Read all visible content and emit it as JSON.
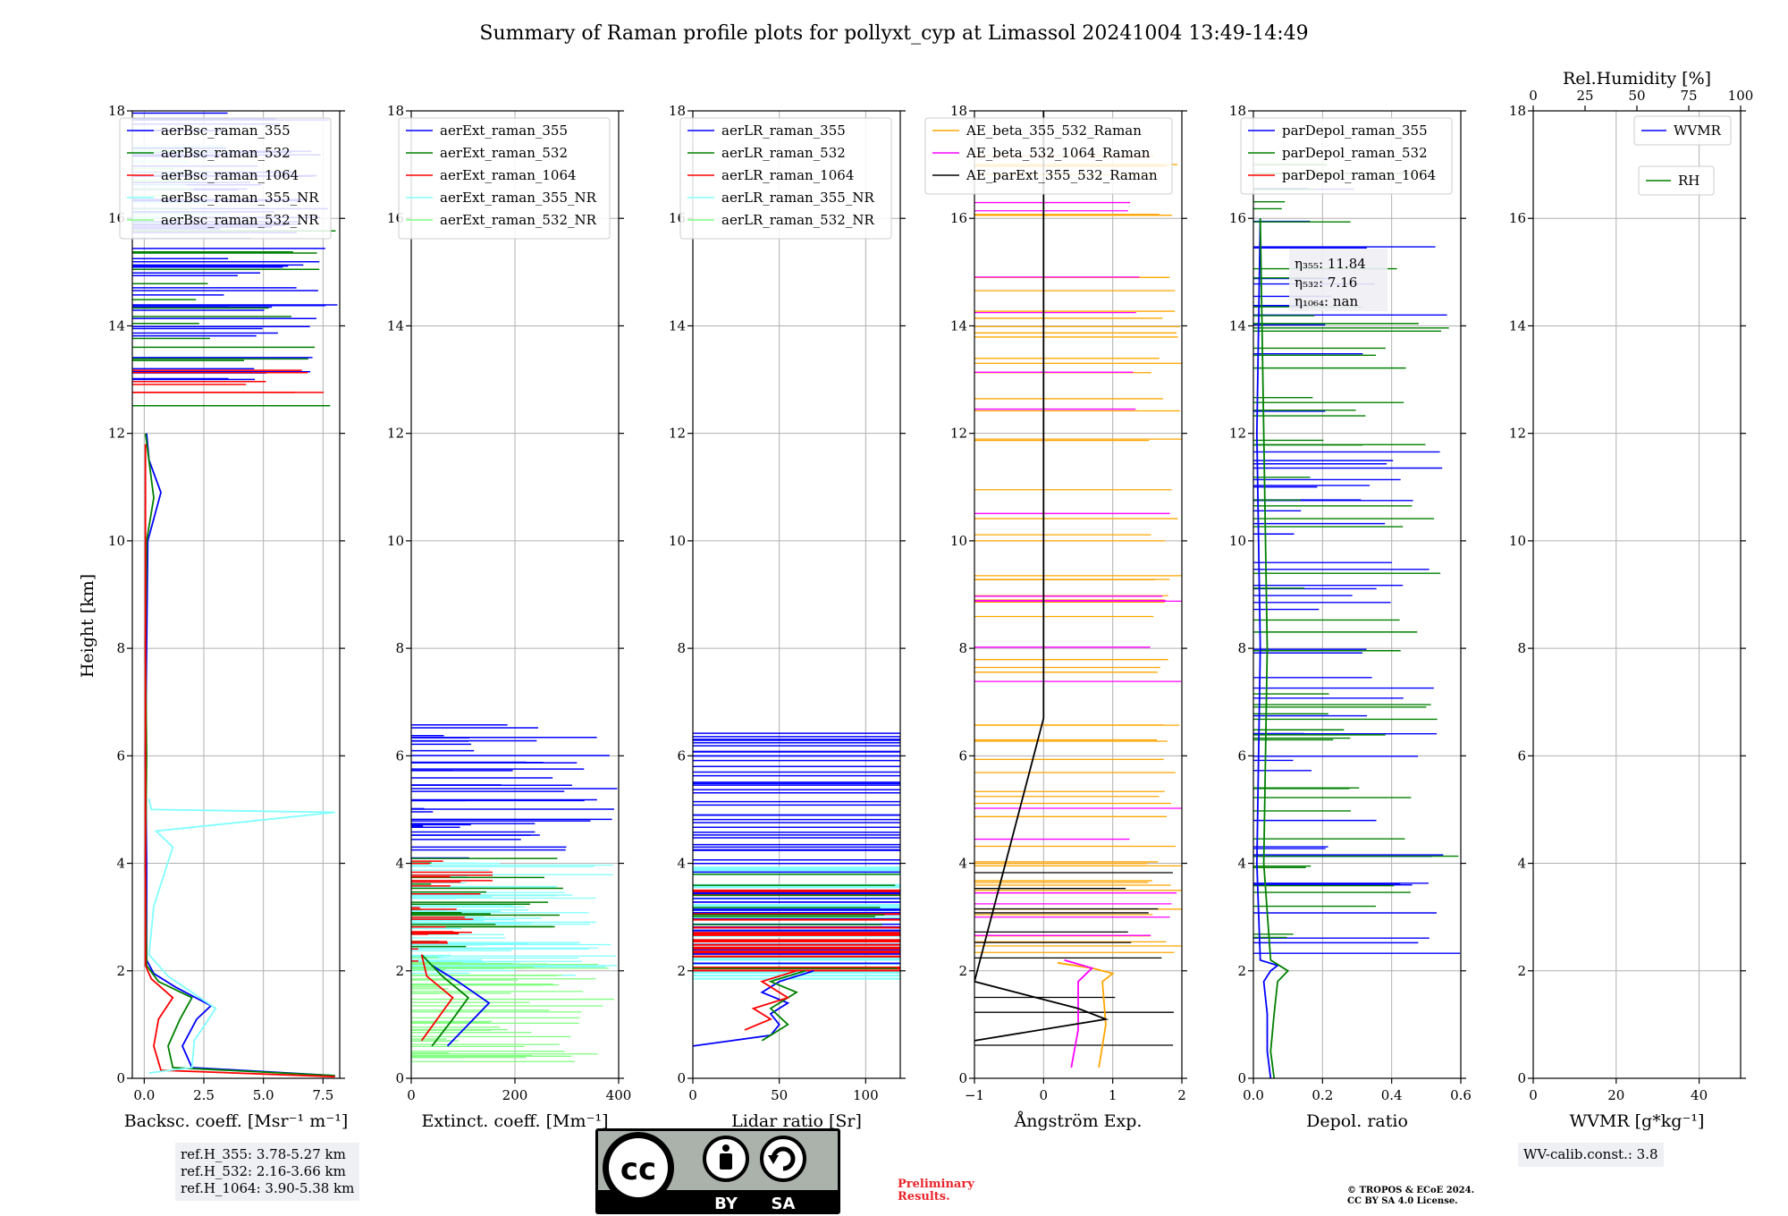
{
  "figure": {
    "title": "Summary of Raman profile plots for pollyxt_cyp at Limassol 20241004 13:49-14:49",
    "ylabel": "Height [km]"
  },
  "colors": {
    "c355": "#0000ff",
    "c532": "#008000",
    "c1064": "#ff0000",
    "c355nr": "#80ffff",
    "c532nr": "#80ff80",
    "orange": "#ffa500",
    "magenta": "#ff00ff",
    "black": "#000000"
  },
  "chart_data": [
    {
      "id": "bsc",
      "type": "line",
      "xlabel": "Backsc. coeff. [Msr⁻¹ m⁻¹]",
      "xlim": [
        -0.5,
        8.2
      ],
      "xticks": [
        0.0,
        2.5,
        5.0,
        7.5
      ],
      "xtick_labels": [
        "0.0",
        "2.5",
        "5.0",
        "7.5"
      ],
      "ylim": [
        0,
        18
      ],
      "yticks": [
        0,
        2,
        4,
        6,
        8,
        10,
        12,
        14,
        16,
        18
      ],
      "legend": [
        "aerBsc_raman_355",
        "aerBsc_raman_532",
        "aerBsc_raman_1064",
        "aerBsc_raman_355_NR",
        "aerBsc_raman_532_NR"
      ],
      "legend_colors": [
        "#0000ff",
        "#008000",
        "#ff0000",
        "#80ffff",
        "#80ff80"
      ],
      "series": [
        {
          "name": "aerBsc_raman_355",
          "color": "#0000ff",
          "points": [
            [
              8.0,
              0.05
            ],
            [
              2.0,
              0.2
            ],
            [
              1.6,
              0.6
            ],
            [
              2.2,
              1.1
            ],
            [
              2.8,
              1.35
            ],
            [
              1.3,
              1.7
            ],
            [
              0.4,
              1.95
            ],
            [
              0.1,
              2.2
            ],
            [
              0.1,
              4
            ],
            [
              0.05,
              6
            ],
            [
              0.1,
              8
            ],
            [
              0.15,
              10
            ],
            [
              0.7,
              10.9
            ],
            [
              0.2,
              11.5
            ],
            [
              0.1,
              12
            ]
          ]
        },
        {
          "name": "aerBsc_raman_532",
          "color": "#008000",
          "points": [
            [
              8.0,
              0.05
            ],
            [
              1.2,
              0.2
            ],
            [
              1.0,
              0.6
            ],
            [
              1.5,
              1.1
            ],
            [
              2.0,
              1.5
            ],
            [
              0.6,
              1.8
            ],
            [
              0.1,
              2.1
            ],
            [
              0.05,
              4
            ],
            [
              0.1,
              6
            ],
            [
              0.05,
              8
            ],
            [
              0.1,
              10
            ],
            [
              0.4,
              10.8
            ],
            [
              0.05,
              12
            ]
          ]
        },
        {
          "name": "aerBsc_raman_1064",
          "color": "#ff0000",
          "points": [
            [
              8.0,
              0.03
            ],
            [
              0.7,
              0.15
            ],
            [
              0.4,
              0.6
            ],
            [
              0.6,
              1.1
            ],
            [
              1.2,
              1.5
            ],
            [
              0.3,
              1.85
            ],
            [
              0.05,
              2.1
            ],
            [
              0.05,
              11.8
            ]
          ]
        },
        {
          "name": "aerBsc_raman_355_NR",
          "color": "#80ffff",
          "points": [
            [
              0.2,
              0.1
            ],
            [
              2.0,
              0.2
            ],
            [
              2.1,
              0.7
            ],
            [
              3.0,
              1.3
            ],
            [
              1.0,
              1.9
            ],
            [
              0.2,
              2.3
            ],
            [
              0.4,
              3.2
            ],
            [
              1.2,
              4.3
            ],
            [
              0.5,
              4.6
            ],
            [
              8.0,
              4.95
            ],
            [
              0.3,
              5.0
            ],
            [
              0.2,
              5.2
            ]
          ]
        }
      ],
      "spikes_note": "many horizontal spikes above 12 km"
    },
    {
      "id": "ext",
      "type": "line",
      "xlabel": "Extinct. coeff. [Mm⁻¹]",
      "xlim": [
        0,
        400
      ],
      "xticks": [
        0,
        200,
        400
      ],
      "xtick_labels": [
        "0",
        "200",
        "400"
      ],
      "ylim": [
        0,
        18
      ],
      "yticks": [
        0,
        2,
        4,
        6,
        8,
        10,
        12,
        14,
        16,
        18
      ],
      "legend": [
        "aerExt_raman_355",
        "aerExt_raman_532",
        "aerExt_raman_1064",
        "aerExt_raman_355_NR",
        "aerExt_raman_532_NR"
      ],
      "legend_colors": [
        "#0000ff",
        "#008000",
        "#ff0000",
        "#80ffff",
        "#80ff80"
      ],
      "series": [
        {
          "name": "aerExt_raman_355",
          "color": "#0000ff",
          "points": [
            [
              70,
              0.6
            ],
            [
              110,
              1.0
            ],
            [
              150,
              1.4
            ],
            [
              90,
              1.8
            ],
            [
              40,
              2.1
            ]
          ]
        },
        {
          "name": "aerExt_raman_532",
          "color": "#008000",
          "points": [
            [
              40,
              0.6
            ],
            [
              80,
              1.1
            ],
            [
              110,
              1.5
            ],
            [
              60,
              1.9
            ],
            [
              20,
              2.3
            ]
          ]
        },
        {
          "name": "aerExt_raman_1064",
          "color": "#ff0000",
          "points": [
            [
              20,
              0.7
            ],
            [
              50,
              1.1
            ],
            [
              80,
              1.5
            ],
            [
              30,
              1.9
            ],
            [
              20,
              2.3
            ]
          ]
        }
      ]
    },
    {
      "id": "lr",
      "type": "line",
      "xlabel": "Lidar ratio [Sr]",
      "xlim": [
        0,
        120
      ],
      "xticks": [
        0,
        50,
        100
      ],
      "xtick_labels": [
        "0",
        "50",
        "100"
      ],
      "ylim": [
        0,
        18
      ],
      "yticks": [
        0,
        2,
        4,
        6,
        8,
        10,
        12,
        14,
        16,
        18
      ],
      "legend": [
        "aerLR_raman_355",
        "aerLR_raman_532",
        "aerLR_raman_1064",
        "aerLR_raman_355_NR",
        "aerLR_raman_532_NR"
      ],
      "legend_colors": [
        "#0000ff",
        "#008000",
        "#ff0000",
        "#80ffff",
        "#80ff80"
      ],
      "series": [
        {
          "name": "aerLR_raman_355",
          "color": "#0000ff",
          "points": [
            [
              0,
              0.6
            ],
            [
              45,
              0.8
            ],
            [
              50,
              1.0
            ],
            [
              45,
              1.2
            ],
            [
              55,
              1.4
            ],
            [
              40,
              1.6
            ],
            [
              50,
              1.8
            ],
            [
              70,
              2.0
            ]
          ]
        },
        {
          "name": "aerLR_raman_532",
          "color": "#008000",
          "points": [
            [
              40,
              0.7
            ],
            [
              55,
              1.0
            ],
            [
              45,
              1.3
            ],
            [
              60,
              1.6
            ],
            [
              45,
              1.8
            ],
            [
              65,
              2.0
            ]
          ]
        },
        {
          "name": "aerLR_raman_1064",
          "color": "#ff0000",
          "points": [
            [
              30,
              0.9
            ],
            [
              45,
              1.1
            ],
            [
              35,
              1.3
            ],
            [
              55,
              1.5
            ],
            [
              40,
              1.8
            ],
            [
              60,
              2.0
            ]
          ]
        }
      ]
    },
    {
      "id": "ae",
      "type": "line",
      "xlabel": "Ångström Exp.",
      "xlim": [
        -1,
        2
      ],
      "xticks": [
        -1,
        0,
        1,
        2
      ],
      "xtick_labels": [
        "−1",
        "0",
        "1",
        "2"
      ],
      "ylim": [
        0,
        18
      ],
      "yticks": [
        0,
        2,
        4,
        6,
        8,
        10,
        12,
        14,
        16,
        18
      ],
      "legend": [
        "AE_beta_355_532_Raman",
        "AE_beta_532_1064_Raman",
        "AE_parExt_355_532_Raman"
      ],
      "legend_colors": [
        "#ffa500",
        "#ff00ff",
        "#000000"
      ],
      "series": [
        {
          "name": "AE_beta_355_532_Raman",
          "color": "#ffa500",
          "points": [
            [
              0.8,
              0.2
            ],
            [
              0.9,
              1.0
            ],
            [
              0.85,
              1.8
            ],
            [
              1.0,
              1.95
            ],
            [
              0.7,
              2.05
            ],
            [
              0.2,
              2.15
            ]
          ]
        },
        {
          "name": "AE_beta_532_1064_Raman",
          "color": "#ff00ff",
          "points": [
            [
              0.4,
              0.2
            ],
            [
              0.5,
              0.9
            ],
            [
              0.5,
              1.8
            ],
            [
              0.7,
              2.05
            ],
            [
              0.3,
              2.2
            ]
          ]
        },
        {
          "name": "AE_parExt_355_532_Raman",
          "color": "#000000",
          "points": [
            [
              -1,
              0.7
            ],
            [
              0.9,
              1.1
            ],
            [
              0.5,
              1.3
            ],
            [
              -1,
              1.8
            ],
            [
              0,
              6.7
            ],
            [
              0,
              18
            ]
          ]
        }
      ]
    },
    {
      "id": "depol",
      "type": "line",
      "xlabel": "Depol. ratio",
      "xlim": [
        0,
        0.6
      ],
      "xticks": [
        0.0,
        0.2,
        0.4,
        0.6
      ],
      "xtick_labels": [
        "0.0",
        "0.2",
        "0.4",
        "0.6"
      ],
      "ylim": [
        0,
        18
      ],
      "yticks": [
        0,
        2,
        4,
        6,
        8,
        10,
        12,
        14,
        16,
        18
      ],
      "legend": [
        "parDepol_raman_355",
        "parDepol_raman_532",
        "parDepol_raman_1064"
      ],
      "legend_colors": [
        "#0000ff",
        "#008000",
        "#ff0000"
      ],
      "annotation": [
        "η₃₅₅: 11.84",
        "η₅₃₂: 7.16",
        "η₁₀₆₄: nan"
      ],
      "series": [
        {
          "name": "parDepol_raman_355",
          "color": "#0000ff",
          "points": [
            [
              0.05,
              0.0
            ],
            [
              0.04,
              0.5
            ],
            [
              0.04,
              1.2
            ],
            [
              0.03,
              1.8
            ],
            [
              0.05,
              2.0
            ],
            [
              0.07,
              2.1
            ],
            [
              0.02,
              2.2
            ],
            [
              0.01,
              4
            ],
            [
              0.02,
              8
            ],
            [
              0.01,
              12
            ],
            [
              0.02,
              16
            ]
          ]
        },
        {
          "name": "parDepol_raman_532",
          "color": "#008000",
          "points": [
            [
              0.06,
              0.0
            ],
            [
              0.05,
              0.5
            ],
            [
              0.06,
              1.2
            ],
            [
              0.07,
              1.8
            ],
            [
              0.1,
              2.0
            ],
            [
              0.05,
              2.2
            ],
            [
              0.03,
              4
            ],
            [
              0.04,
              8
            ],
            [
              0.03,
              12
            ],
            [
              0.02,
              16
            ]
          ]
        }
      ]
    },
    {
      "id": "wv",
      "type": "line",
      "xlabel": "WVMR [g*kg⁻¹]",
      "xlim": [
        0,
        50
      ],
      "xticks": [
        0,
        20,
        40
      ],
      "xtick_labels": [
        "0",
        "20",
        "40"
      ],
      "top_xlabel": "Rel.Humidity [%]",
      "top_xlim": [
        0,
        100
      ],
      "top_xticks": [
        0,
        25,
        50,
        75,
        100
      ],
      "top_xtick_labels": [
        "0",
        "25",
        "50",
        "75",
        "100"
      ],
      "ylim": [
        0,
        18
      ],
      "yticks": [
        0,
        2,
        4,
        6,
        8,
        10,
        12,
        14,
        16,
        18
      ],
      "legend": [
        "WVMR",
        "RH"
      ],
      "legend_colors": [
        "#0000ff",
        "#008000"
      ],
      "series": []
    }
  ],
  "notes": {
    "refh": [
      "ref.H_355: 3.78-5.27 km",
      "ref.H_532: 2.16-3.66 km",
      "ref.H_1064: 3.90-5.38 km"
    ],
    "wvcalib": "WV-calib.const.: 3.8",
    "preliminary": [
      "Preliminary",
      "Results."
    ],
    "copyright": [
      "© TROPOS & ECoE 2024.",
      "CC BY SA 4.0 License."
    ],
    "cc": {
      "by": "BY",
      "sa": "SA"
    }
  }
}
